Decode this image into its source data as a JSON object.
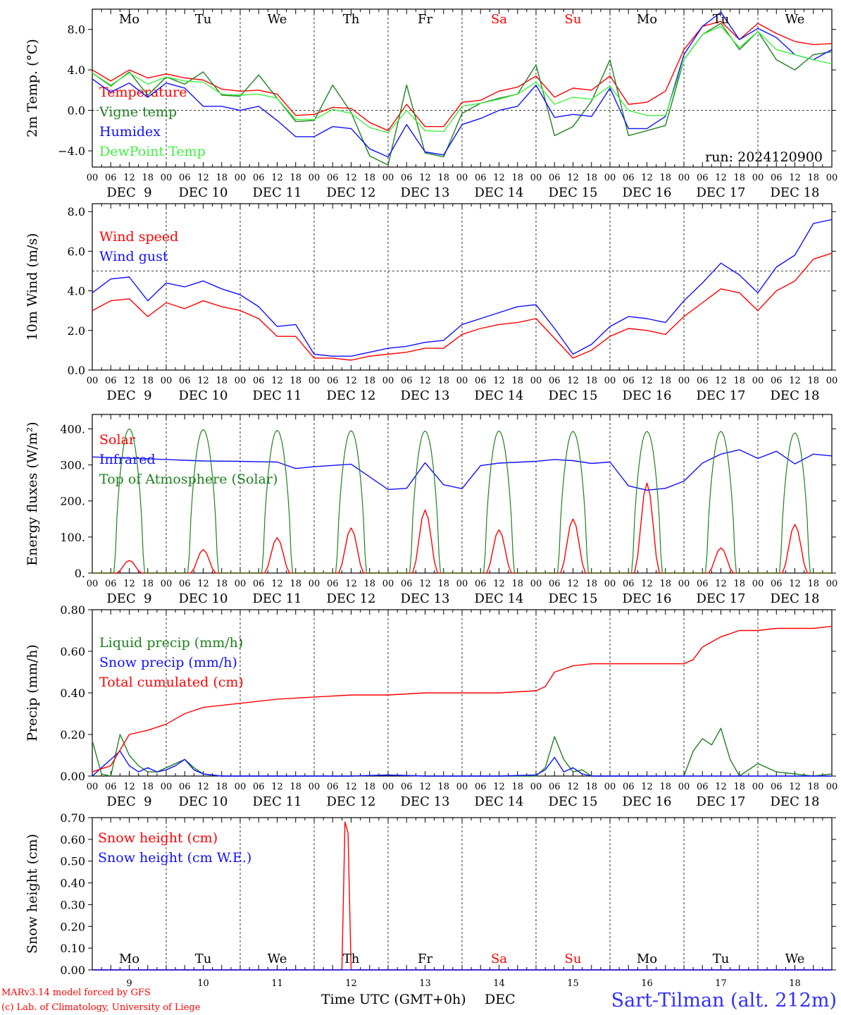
{
  "meta": {
    "run": "run: 2024120900",
    "model": "MARv3.14 model forced by GFS",
    "credit": "(c) Lab. of Climatology, University of Liege",
    "xlabel": "Time UTC (GMT+0h)",
    "month": "DEC",
    "station": "Sart-Tilman (alt. 212m)"
  },
  "days": [
    "Mo",
    "Tu",
    "We",
    "Th",
    "Fr",
    "Sa",
    "Su",
    "Mo",
    "Tu",
    "We"
  ],
  "day_colors": [
    "#000000",
    "#000000",
    "#000000",
    "#000000",
    "#000000",
    "#ff0000",
    "#ff0000",
    "#000000",
    "#000000",
    "#000000"
  ],
  "date_labels": [
    "DEC  9",
    "DEC 10",
    "DEC 11",
    "DEC 12",
    "DEC 13",
    "DEC 14",
    "DEC 15",
    "DEC 16",
    "DEC 17",
    "DEC 18"
  ],
  "day_numbers": [
    "9",
    "10",
    "11",
    "12",
    "13",
    "14",
    "15",
    "16",
    "17",
    "18"
  ],
  "hour_labels": [
    "00",
    "06",
    "12",
    "18"
  ],
  "colors": {
    "red": "#ff0000",
    "green": "#208020",
    "blue": "#1010ff",
    "lightgreen": "#40f040",
    "axis": "#000000"
  },
  "chart_data": [
    {
      "type": "line",
      "ylabel": "2m Temp. (°C)",
      "ylim": [
        -5.6,
        10.0
      ],
      "yticks": [
        -4.0,
        0.0,
        4.0,
        8.0
      ],
      "ytick_labels": [
        "−4.0",
        "0.0",
        "4.0",
        "8.0"
      ],
      "hline": 0,
      "x_unit": "hours since DEC 9 00 UTC",
      "series": [
        {
          "name": "Temperature",
          "color": "#ff0000",
          "x": [
            0,
            6,
            12,
            18,
            24,
            30,
            36,
            42,
            48,
            54,
            60,
            66,
            72,
            78,
            84,
            90,
            96,
            102,
            108,
            114,
            120,
            126,
            132,
            138,
            144,
            150,
            156,
            162,
            168,
            174,
            180,
            186,
            192,
            198,
            204,
            210,
            216,
            222,
            228,
            234,
            240
          ],
          "y": [
            4.0,
            2.9,
            4.0,
            3.2,
            3.6,
            3.2,
            3.0,
            2.1,
            1.9,
            2.0,
            1.6,
            -0.5,
            -0.4,
            0.3,
            0.2,
            -1.2,
            -2.0,
            0.6,
            -1.6,
            -1.6,
            0.8,
            1.0,
            1.9,
            2.3,
            3.4,
            1.3,
            2.2,
            2.0,
            3.4,
            0.6,
            0.8,
            1.9,
            6.0,
            8.3,
            8.8,
            7.0,
            8.6,
            7.6,
            6.8,
            6.5,
            6.6
          ]
        },
        {
          "name": "Vigne temp",
          "color": "#208020",
          "x": [
            0,
            6,
            12,
            18,
            24,
            30,
            36,
            42,
            48,
            54,
            60,
            66,
            72,
            78,
            84,
            90,
            96,
            102,
            108,
            114,
            120,
            126,
            132,
            138,
            144,
            150,
            156,
            162,
            168,
            174,
            180,
            186,
            192,
            198,
            204,
            210,
            216,
            222,
            228,
            234,
            240
          ],
          "y": [
            3.7,
            2.4,
            3.8,
            1.5,
            3.3,
            2.6,
            3.8,
            1.5,
            1.4,
            3.5,
            1.2,
            -1.1,
            -1.0,
            2.5,
            -0.2,
            -4.5,
            -5.4,
            2.5,
            -4.2,
            -4.6,
            -0.3,
            0.7,
            1.2,
            1.6,
            4.5,
            -2.5,
            -1.6,
            0.9,
            5.0,
            -2.5,
            -2.0,
            -1.5,
            5.0,
            7.5,
            8.6,
            6.0,
            7.8,
            5.0,
            4.0,
            5.5,
            5.8
          ]
        },
        {
          "name": "Humidex",
          "color": "#1010ff",
          "x": [
            0,
            6,
            12,
            18,
            24,
            30,
            36,
            42,
            48,
            54,
            60,
            66,
            72,
            78,
            84,
            90,
            96,
            102,
            108,
            114,
            120,
            126,
            132,
            138,
            144,
            150,
            156,
            162,
            168,
            174,
            180,
            186,
            192,
            198,
            204,
            210,
            216,
            222,
            228,
            234,
            240
          ],
          "y": [
            3.1,
            1.8,
            2.7,
            1.3,
            2.7,
            2.2,
            0.4,
            0.4,
            0.0,
            0.4,
            -1.0,
            -2.6,
            -2.6,
            -1.6,
            -1.8,
            -3.8,
            -4.6,
            -1.4,
            -4.1,
            -4.4,
            -1.4,
            -0.8,
            0.0,
            0.4,
            2.5,
            -0.7,
            -0.4,
            -0.6,
            2.2,
            -1.8,
            -1.8,
            -0.6,
            5.5,
            8.3,
            9.7,
            7.0,
            8.1,
            7.2,
            5.5,
            5.0,
            6.0
          ]
        },
        {
          "name": "DewPoint Temp",
          "color": "#40f040",
          "x": [
            0,
            6,
            12,
            18,
            24,
            30,
            36,
            42,
            48,
            54,
            60,
            66,
            72,
            78,
            84,
            90,
            96,
            102,
            108,
            114,
            120,
            126,
            132,
            138,
            144,
            150,
            156,
            162,
            168,
            174,
            180,
            186,
            192,
            198,
            204,
            210,
            216,
            222,
            228,
            234,
            240
          ],
          "y": [
            3.7,
            2.5,
            3.7,
            2.6,
            3.3,
            2.9,
            2.8,
            1.6,
            1.5,
            1.6,
            1.2,
            -0.9,
            -0.9,
            0.1,
            -0.3,
            -1.7,
            -2.2,
            0.0,
            -2.0,
            -2.1,
            0.4,
            0.7,
            1.1,
            1.6,
            2.8,
            0.6,
            1.3,
            1.1,
            2.4,
            0.0,
            -0.5,
            -0.5,
            5.0,
            7.5,
            8.3,
            6.2,
            7.8,
            6.0,
            5.5,
            5.0,
            4.6
          ]
        }
      ]
    },
    {
      "type": "line",
      "ylabel": "10m Wind (m/s)",
      "ylim": [
        0.0,
        8.4
      ],
      "yticks": [
        0.0,
        2.0,
        4.0,
        6.0,
        8.0
      ],
      "ytick_labels": [
        "0.0",
        "2.0",
        "4.0",
        "6.0",
        "8.0"
      ],
      "hline": 5,
      "x_unit": "hours since DEC 9 00 UTC",
      "series": [
        {
          "name": "Wind speed",
          "color": "#ff0000",
          "x": [
            0,
            6,
            12,
            18,
            24,
            30,
            36,
            42,
            48,
            54,
            60,
            66,
            72,
            78,
            84,
            90,
            96,
            102,
            108,
            114,
            120,
            126,
            132,
            138,
            144,
            150,
            156,
            162,
            168,
            174,
            180,
            186,
            192,
            198,
            204,
            210,
            216,
            222,
            228,
            234,
            240
          ],
          "y": [
            3.0,
            3.5,
            3.6,
            2.7,
            3.4,
            3.1,
            3.5,
            3.2,
            3.0,
            2.6,
            1.7,
            1.7,
            0.6,
            0.6,
            0.5,
            0.7,
            0.8,
            0.9,
            1.1,
            1.1,
            1.8,
            2.1,
            2.3,
            2.4,
            2.6,
            1.6,
            0.6,
            1.0,
            1.7,
            2.1,
            2.0,
            1.8,
            2.7,
            3.4,
            4.1,
            3.9,
            3.0,
            4.0,
            4.5,
            5.6,
            5.9
          ]
        },
        {
          "name": "Wind gust",
          "color": "#1010ff",
          "x": [
            0,
            6,
            12,
            18,
            24,
            30,
            36,
            42,
            48,
            54,
            60,
            66,
            72,
            78,
            84,
            90,
            96,
            102,
            108,
            114,
            120,
            126,
            132,
            138,
            144,
            150,
            156,
            162,
            168,
            174,
            180,
            186,
            192,
            198,
            204,
            210,
            216,
            222,
            228,
            234,
            240
          ],
          "y": [
            3.9,
            4.6,
            4.7,
            3.5,
            4.4,
            4.2,
            4.5,
            4.1,
            3.8,
            3.2,
            2.2,
            2.3,
            0.8,
            0.7,
            0.7,
            0.9,
            1.1,
            1.2,
            1.4,
            1.5,
            2.3,
            2.6,
            2.9,
            3.2,
            3.3,
            2.1,
            0.8,
            1.3,
            2.2,
            2.7,
            2.6,
            2.4,
            3.5,
            4.4,
            5.4,
            4.8,
            3.9,
            5.2,
            5.8,
            7.4,
            7.6
          ]
        }
      ]
    },
    {
      "type": "line",
      "ylabel": "Energy fluxes (W/m²)",
      "ylim": [
        0,
        440
      ],
      "yticks": [
        0,
        100,
        200,
        300,
        400
      ],
      "ytick_labels": [
        "0.",
        "100.",
        "200.",
        "300.",
        "400."
      ],
      "x_unit": "hours since DEC 9 00 UTC",
      "toa_peaks": [
        400,
        398,
        396,
        395,
        394,
        394,
        393,
        393,
        393,
        389
      ],
      "series": [
        {
          "name": "Solar",
          "color": "#ff0000",
          "solar_peaks": [
            35,
            65,
            98,
            125,
            175,
            120,
            150,
            250,
            70,
            135
          ]
        },
        {
          "name": "Infrared",
          "color": "#1010ff",
          "x": [
            0,
            12,
            24,
            36,
            48,
            60,
            66,
            72,
            84,
            96,
            102,
            108,
            114,
            120,
            126,
            132,
            144,
            150,
            156,
            162,
            168,
            174,
            180,
            186,
            192,
            198,
            204,
            210,
            216,
            222,
            228,
            234,
            240
          ],
          "y": [
            322,
            319,
            315,
            311,
            310,
            308,
            290,
            295,
            302,
            232,
            235,
            306,
            245,
            234,
            298,
            305,
            310,
            315,
            312,
            304,
            308,
            242,
            230,
            235,
            255,
            305,
            330,
            342,
            318,
            338,
            303,
            330,
            325
          ]
        },
        {
          "name": "Top of Atmosphere (Solar)",
          "color": "#208020"
        }
      ]
    },
    {
      "type": "line",
      "ylabel": "Precip (mm/h)",
      "ylim": [
        0.0,
        0.8
      ],
      "yticks": [
        0.0,
        0.2,
        0.4,
        0.6,
        0.8
      ],
      "ytick_labels": [
        "0.00",
        "0.20",
        "0.40",
        "0.60",
        "0.80"
      ],
      "x_unit": "hours since DEC 9 00 UTC",
      "series": [
        {
          "name": "Liquid precip (mm/h)",
          "color": "#208020",
          "x": [
            0,
            3,
            6,
            9,
            12,
            15,
            18,
            21,
            24,
            27,
            30,
            33,
            36,
            42,
            48,
            60,
            72,
            84,
            96,
            108,
            120,
            132,
            144,
            147,
            150,
            153,
            156,
            159,
            162,
            168,
            174,
            180,
            186,
            192,
            195,
            198,
            201,
            204,
            207,
            210,
            216,
            222,
            228,
            234,
            240
          ],
          "y": [
            0.17,
            0.01,
            0.0,
            0.2,
            0.1,
            0.05,
            0.02,
            0.02,
            0.04,
            0.06,
            0.08,
            0.04,
            0.01,
            0.0,
            0.0,
            0.0,
            0.0,
            0.0,
            0.005,
            0.0,
            0.0,
            0.0,
            0.0,
            0.04,
            0.19,
            0.08,
            0.02,
            0.03,
            0.0,
            0.0,
            0.0,
            0.0,
            0.0,
            0.0,
            0.12,
            0.18,
            0.15,
            0.23,
            0.08,
            0.0,
            0.06,
            0.02,
            0.01,
            0.0,
            0.01
          ]
        },
        {
          "name": "Snow precip (mm/h)",
          "color": "#1010ff",
          "x": [
            0,
            3,
            6,
            9,
            12,
            15,
            18,
            21,
            24,
            27,
            30,
            33,
            36,
            42,
            48,
            60,
            72,
            84,
            96,
            108,
            120,
            132,
            144,
            147,
            150,
            153,
            156,
            159,
            162,
            168,
            174,
            180,
            186,
            192,
            198,
            204,
            210,
            216,
            222,
            228,
            234,
            240
          ],
          "y": [
            0.0,
            0.04,
            0.08,
            0.12,
            0.05,
            0.02,
            0.04,
            0.02,
            0.03,
            0.05,
            0.08,
            0.03,
            0.01,
            0.0,
            0.0,
            0.0,
            0.0,
            0.0,
            0.005,
            0.0,
            0.0,
            0.0,
            0.005,
            0.03,
            0.09,
            0.02,
            0.04,
            0.01,
            0.0,
            0.0,
            0.0,
            0.0,
            0.0,
            0.0,
            0.0,
            0.0,
            0.0,
            0.0,
            0.0,
            0.0,
            0.0,
            0.0
          ]
        },
        {
          "name": "Total cumulated (cm)",
          "color": "#ff0000",
          "x": [
            0,
            6,
            12,
            18,
            24,
            30,
            36,
            48,
            60,
            72,
            84,
            96,
            108,
            120,
            132,
            144,
            147,
            150,
            156,
            162,
            168,
            174,
            180,
            186,
            192,
            195,
            198,
            204,
            210,
            216,
            222,
            228,
            234,
            240
          ],
          "y": [
            0.02,
            0.05,
            0.2,
            0.22,
            0.25,
            0.3,
            0.33,
            0.35,
            0.37,
            0.38,
            0.39,
            0.39,
            0.4,
            0.4,
            0.4,
            0.41,
            0.43,
            0.5,
            0.53,
            0.54,
            0.54,
            0.54,
            0.54,
            0.54,
            0.54,
            0.56,
            0.62,
            0.67,
            0.7,
            0.7,
            0.71,
            0.71,
            0.71,
            0.72
          ]
        }
      ]
    },
    {
      "type": "line",
      "ylabel": "Snow height (cm)",
      "ylim": [
        0.0,
        0.7
      ],
      "yticks": [
        0.0,
        0.1,
        0.2,
        0.3,
        0.4,
        0.5,
        0.6,
        0.7
      ],
      "ytick_labels": [
        "0.00",
        "0.10",
        "0.20",
        "0.30",
        "0.40",
        "0.50",
        "0.60",
        "0.70"
      ],
      "x_unit": "hours since DEC 9 00 UTC",
      "series": [
        {
          "name": "Snow height (cm)",
          "color": "#ff0000",
          "x": [
            0,
            81,
            82,
            83,
            84,
            240
          ],
          "y": [
            0.0,
            0.0,
            0.68,
            0.63,
            0.0,
            0.0
          ]
        },
        {
          "name": "Snow height (cm W.E.)",
          "color": "#1010ff",
          "x": [
            0,
            240
          ],
          "y": [
            0.0,
            0.0
          ]
        }
      ]
    }
  ]
}
